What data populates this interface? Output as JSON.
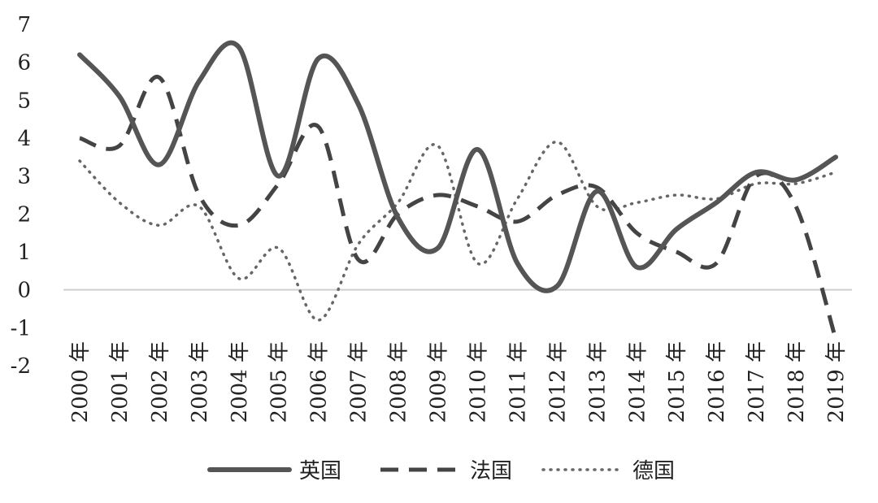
{
  "chart_data": {
    "type": "line",
    "categories": [
      "2000 年",
      "2001 年",
      "2002 年",
      "2003 年",
      "2004 年",
      "2005 年",
      "2006 年",
      "2007 年",
      "2008 年",
      "2009 年",
      "2010 年",
      "2011 年",
      "2012 年",
      "2013 年",
      "2014 年",
      "2015 年",
      "2016 年",
      "2017 年",
      "2018 年",
      "2019 年"
    ],
    "y_ticks": [
      "7",
      "6",
      "5",
      "4",
      "3",
      "2",
      "1",
      "0",
      "-1",
      "-2"
    ],
    "ylim": [
      -2,
      7
    ],
    "grid": false,
    "zero_line": true,
    "legend_position": "bottom",
    "series": [
      {
        "name": "英国",
        "style": "solid",
        "color": "#555555",
        "values": [
          6.2,
          5.1,
          3.3,
          5.5,
          6.4,
          3.0,
          6.1,
          4.9,
          1.9,
          1.1,
          3.7,
          0.7,
          0.1,
          2.6,
          0.6,
          1.6,
          2.3,
          3.1,
          2.9,
          3.5
        ]
      },
      {
        "name": "法国",
        "style": "dashed",
        "color": "#444444",
        "values": [
          4.0,
          3.8,
          5.6,
          2.5,
          1.7,
          2.8,
          4.3,
          0.8,
          2.0,
          2.5,
          2.2,
          1.8,
          2.5,
          2.7,
          1.5,
          1.0,
          0.7,
          3.0,
          2.2,
          -1.3
        ]
      },
      {
        "name": "德国",
        "style": "dotted",
        "color": "#666666",
        "values": [
          3.4,
          2.3,
          1.7,
          2.2,
          0.3,
          1.1,
          -0.8,
          1.2,
          2.3,
          3.8,
          0.7,
          2.4,
          3.9,
          2.2,
          2.3,
          2.5,
          2.4,
          2.8,
          2.8,
          3.1
        ]
      }
    ]
  }
}
